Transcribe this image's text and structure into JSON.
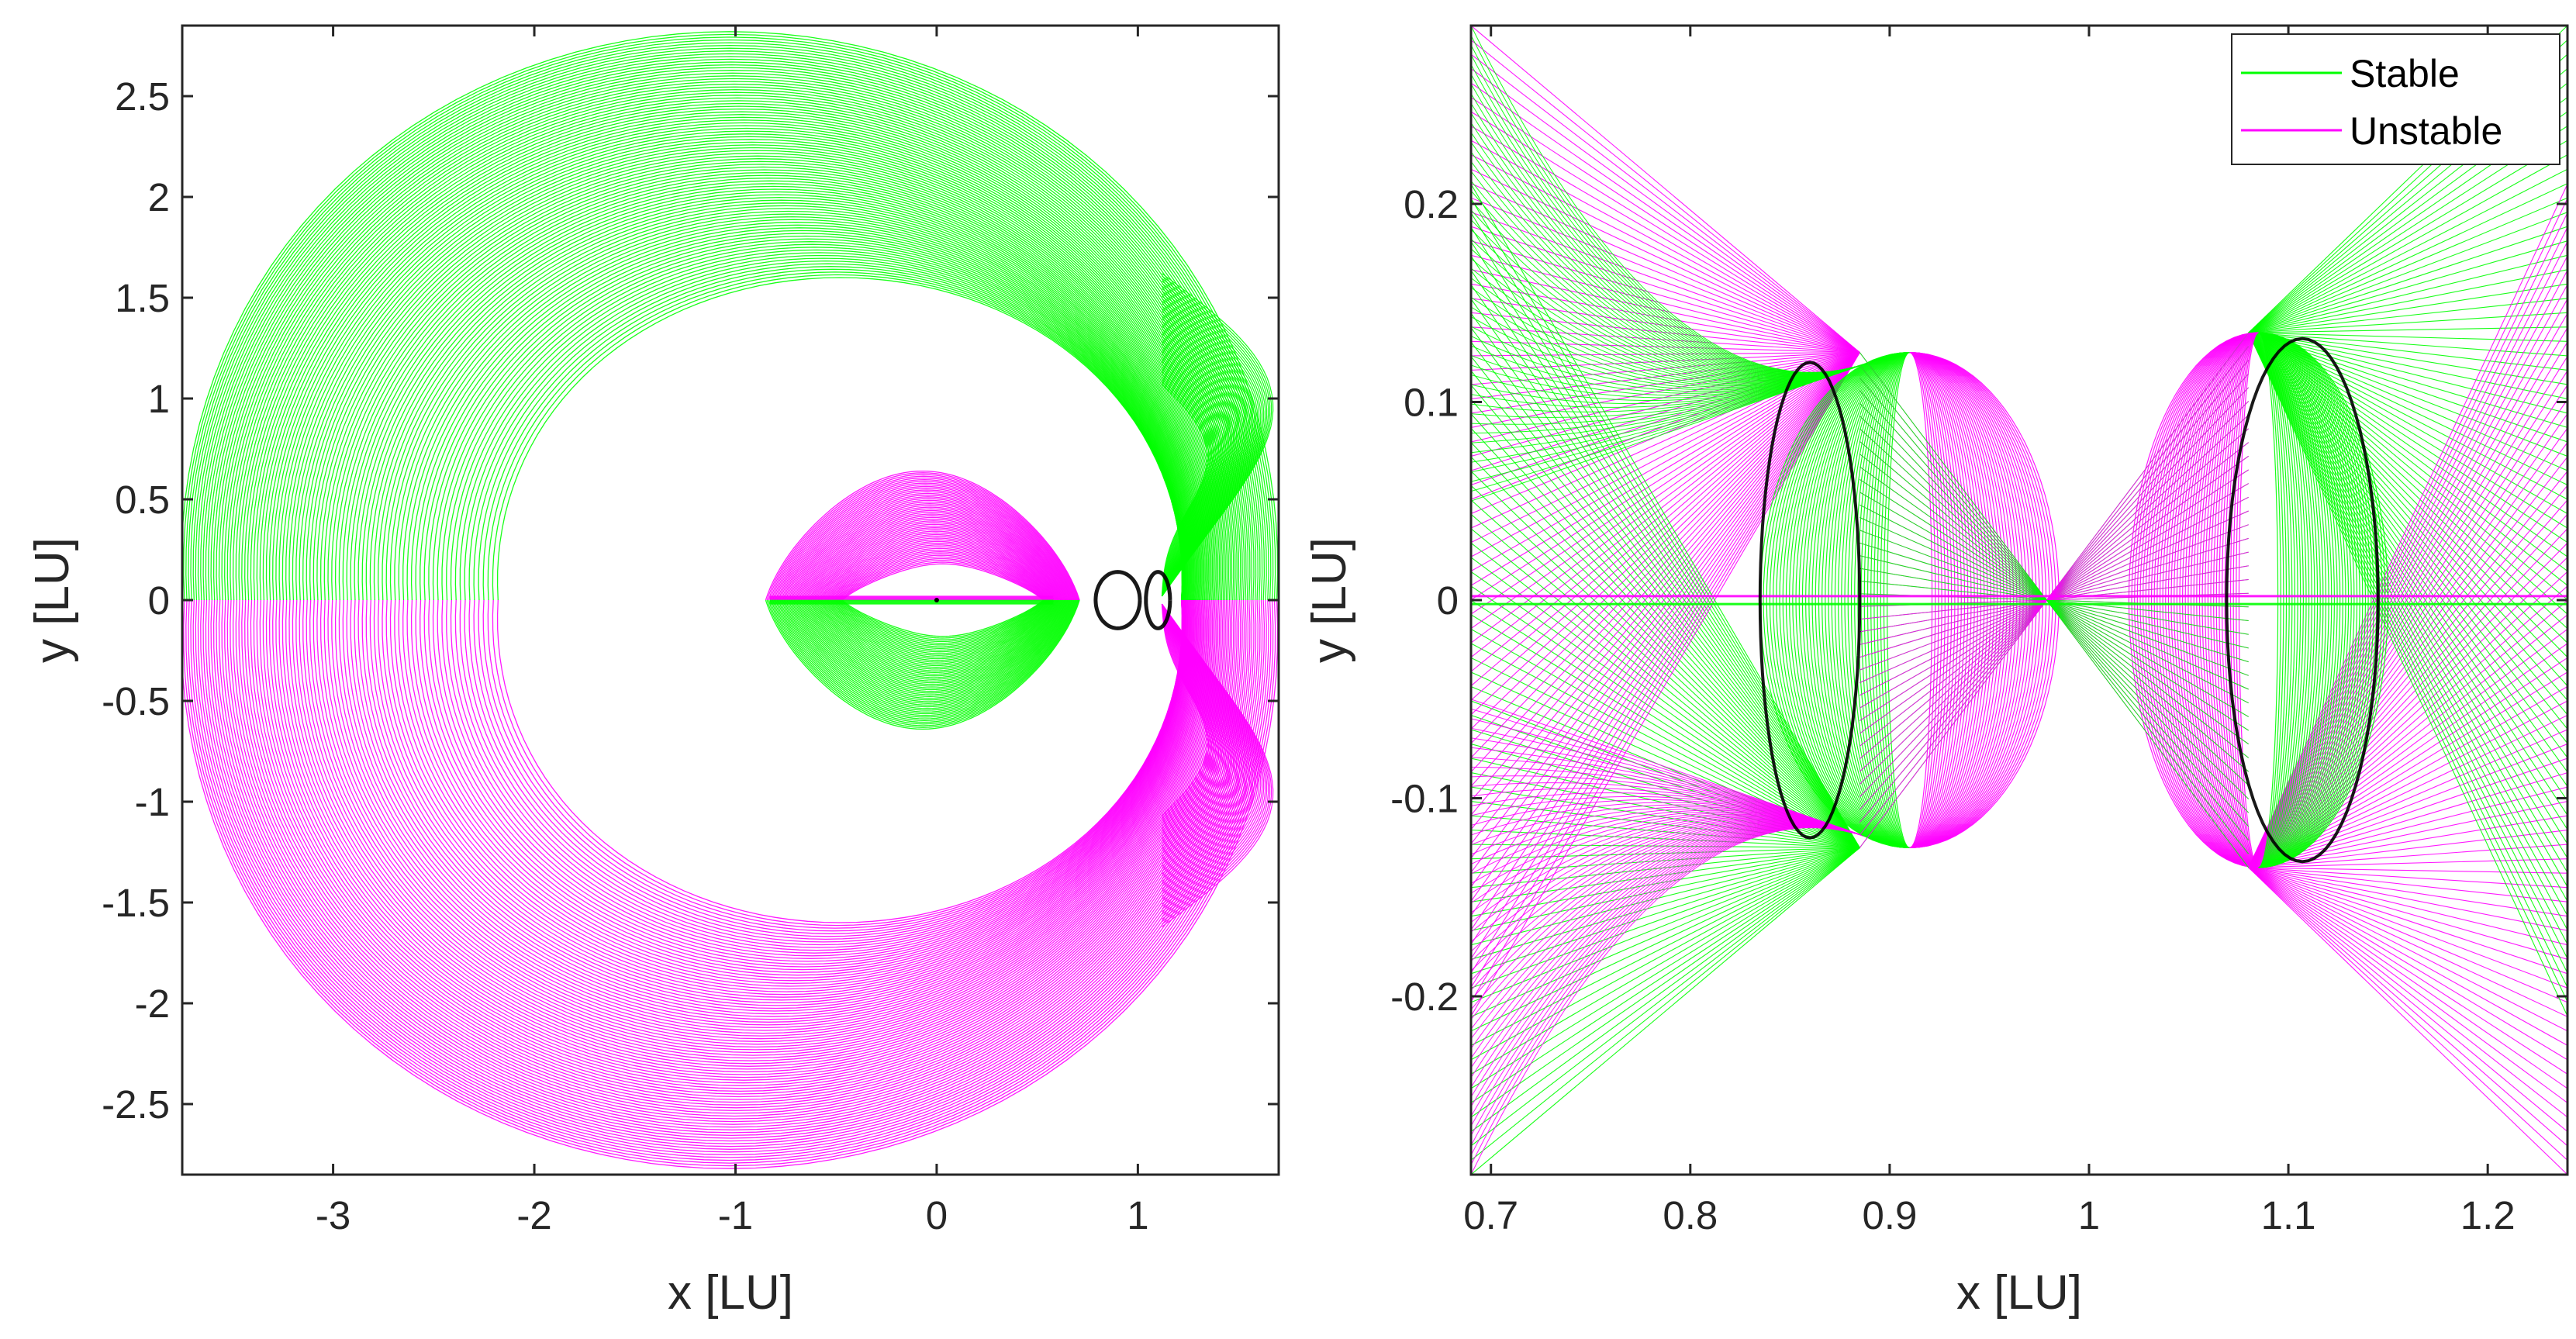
{
  "colors": {
    "stable": "#00ff00",
    "unstable": "#ff00ff",
    "orbit": "#000000",
    "axes": "#262626"
  },
  "chart_data": [
    {
      "type": "line",
      "title": "",
      "xlabel": "x [LU]",
      "ylabel": "y [LU]",
      "xlim": [
        -3.75,
        1.7
      ],
      "ylim": [
        -2.85,
        2.85
      ],
      "xticks": [
        -3,
        -2,
        -1,
        0,
        1
      ],
      "xtick_labels": [
        "-3",
        "-2",
        "-1",
        "0",
        "1"
      ],
      "yticks": [
        -2.5,
        -2,
        -1.5,
        -1,
        -0.5,
        0,
        0.5,
        1,
        1.5,
        2,
        2.5
      ],
      "ytick_labels": [
        "-2.5",
        "-2",
        "-1.5",
        "-1",
        "-0.5",
        "0",
        "0.5",
        "1",
        "1.5",
        "2",
        "2.5"
      ],
      "grid": false,
      "series": [
        {
          "name": "Stable",
          "description_region": "outer upper spiral and inner lower lobe",
          "x": [
            -3.75,
            -3.4,
            -2.8,
            -1.8,
            -0.7,
            0.3,
            1.1,
            1.6,
            1.65,
            1.4,
            1.1
          ],
          "y": [
            0,
            1.2,
            2.1,
            2.7,
            2.82,
            2.6,
            2.0,
            1.0,
            0.3,
            0.1,
            0
          ]
        },
        {
          "name": "Unstable",
          "description_region": "outer lower spiral and inner upper lobe",
          "x": [
            1.1,
            1.4,
            1.65,
            1.6,
            1.1,
            0.3,
            -0.7,
            -1.8,
            -2.8,
            -3.4,
            -3.75
          ],
          "y": [
            0,
            -0.1,
            -0.3,
            -1.0,
            -2.0,
            -2.6,
            -2.82,
            -2.7,
            -2.1,
            -1.2,
            0
          ]
        }
      ]
    },
    {
      "type": "line",
      "title": "",
      "xlabel": "x [LU]",
      "ylabel": "y [LU]",
      "xlim": [
        0.69,
        1.24
      ],
      "ylim": [
        -0.29,
        0.29
      ],
      "xticks": [
        0.7,
        0.8,
        0.9,
        1,
        1.1,
        1.2
      ],
      "xtick_labels": [
        "0.7",
        "0.8",
        "0.9",
        "1",
        "1.1",
        "1.2"
      ],
      "yticks": [
        -0.2,
        -0.1,
        0,
        0.1,
        0.2
      ],
      "ytick_labels": [
        "-0.2",
        "-0.1",
        "0",
        "0.1",
        "0.2"
      ],
      "grid": false,
      "legend": {
        "position": "top-right",
        "entries": [
          "Stable",
          "Unstable"
        ]
      },
      "series": [
        {
          "name": "Stable"
        },
        {
          "name": "Unstable"
        }
      ]
    }
  ]
}
